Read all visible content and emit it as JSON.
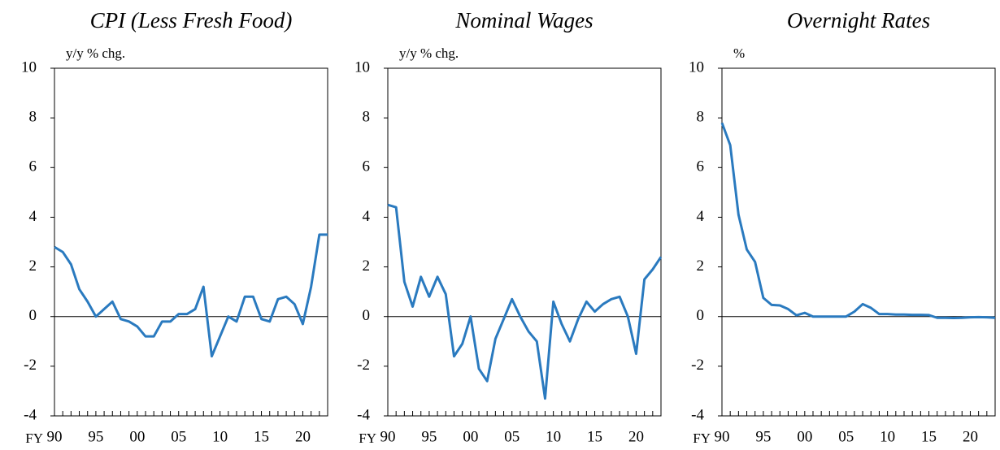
{
  "chart_data": [
    {
      "type": "line",
      "title": "CPI (Less Fresh Food)",
      "y_label": "y/y % chg.",
      "x_prefix": "FY",
      "categories": [
        "90",
        null,
        null,
        null,
        null,
        "95",
        null,
        null,
        null,
        null,
        "00",
        null,
        null,
        null,
        null,
        "05",
        null,
        null,
        null,
        null,
        "10",
        null,
        null,
        null,
        null,
        "15",
        null,
        null,
        null,
        null,
        "20",
        null,
        null,
        null
      ],
      "series": [
        {
          "name": "CPI (Less Fresh Food)",
          "color": "#2a7abf",
          "values": [
            2.8,
            2.6,
            2.1,
            1.1,
            0.6,
            0.0,
            0.3,
            0.6,
            -0.1,
            -0.2,
            -0.4,
            -0.8,
            -0.8,
            -0.2,
            -0.2,
            0.1,
            0.1,
            0.3,
            1.2,
            -1.6,
            -0.8,
            0.0,
            -0.2,
            0.8,
            0.8,
            -0.1,
            -0.2,
            0.7,
            0.8,
            0.5,
            -0.3,
            1.2,
            3.3,
            3.3
          ]
        }
      ],
      "ylim": [
        -4,
        10
      ],
      "yticks": [
        -4,
        -2,
        0,
        2,
        4,
        6,
        8,
        10
      ]
    },
    {
      "type": "line",
      "title": "Nominal Wages",
      "y_label": "y/y % chg.",
      "x_prefix": "FY",
      "categories": [
        "90",
        null,
        null,
        null,
        null,
        "95",
        null,
        null,
        null,
        null,
        "00",
        null,
        null,
        null,
        null,
        "05",
        null,
        null,
        null,
        null,
        "10",
        null,
        null,
        null,
        null,
        "15",
        null,
        null,
        null,
        null,
        "20",
        null,
        null,
        null
      ],
      "series": [
        {
          "name": "Nominal Wages",
          "color": "#2a7abf",
          "values": [
            4.5,
            4.4,
            1.4,
            0.4,
            1.6,
            0.8,
            1.6,
            0.9,
            -1.6,
            -1.1,
            0.0,
            -2.1,
            -2.6,
            -0.9,
            -0.1,
            0.7,
            0.0,
            -0.6,
            -1.0,
            -3.3,
            0.6,
            -0.3,
            -1.0,
            -0.1,
            0.6,
            0.2,
            0.5,
            0.7,
            0.8,
            0.0,
            -1.5,
            1.5,
            1.9,
            2.4
          ]
        }
      ],
      "ylim": [
        -4,
        10
      ],
      "yticks": [
        -4,
        -2,
        0,
        2,
        4,
        6,
        8,
        10
      ]
    },
    {
      "type": "line",
      "title": "Overnight Rates",
      "y_label": "%",
      "x_prefix": "FY",
      "categories": [
        "90",
        null,
        null,
        null,
        null,
        "95",
        null,
        null,
        null,
        null,
        "00",
        null,
        null,
        null,
        null,
        "05",
        null,
        null,
        null,
        null,
        "10",
        null,
        null,
        null,
        null,
        "15",
        null,
        null,
        null,
        null,
        "20",
        null,
        null,
        null
      ],
      "series": [
        {
          "name": "Overnight Rates",
          "color": "#2a7abf",
          "values": [
            7.8,
            6.9,
            4.1,
            2.7,
            2.2,
            0.75,
            0.47,
            0.45,
            0.3,
            0.05,
            0.15,
            0.0,
            0.0,
            0.0,
            0.0,
            0.0,
            0.2,
            0.5,
            0.35,
            0.1,
            0.1,
            0.08,
            0.08,
            0.07,
            0.07,
            0.06,
            -0.05,
            -0.05,
            -0.06,
            -0.05,
            -0.03,
            -0.02,
            -0.03,
            -0.05
          ]
        }
      ],
      "ylim": [
        -4,
        10
      ],
      "yticks": [
        -4,
        -2,
        0,
        2,
        4,
        6,
        8,
        10
      ]
    }
  ]
}
